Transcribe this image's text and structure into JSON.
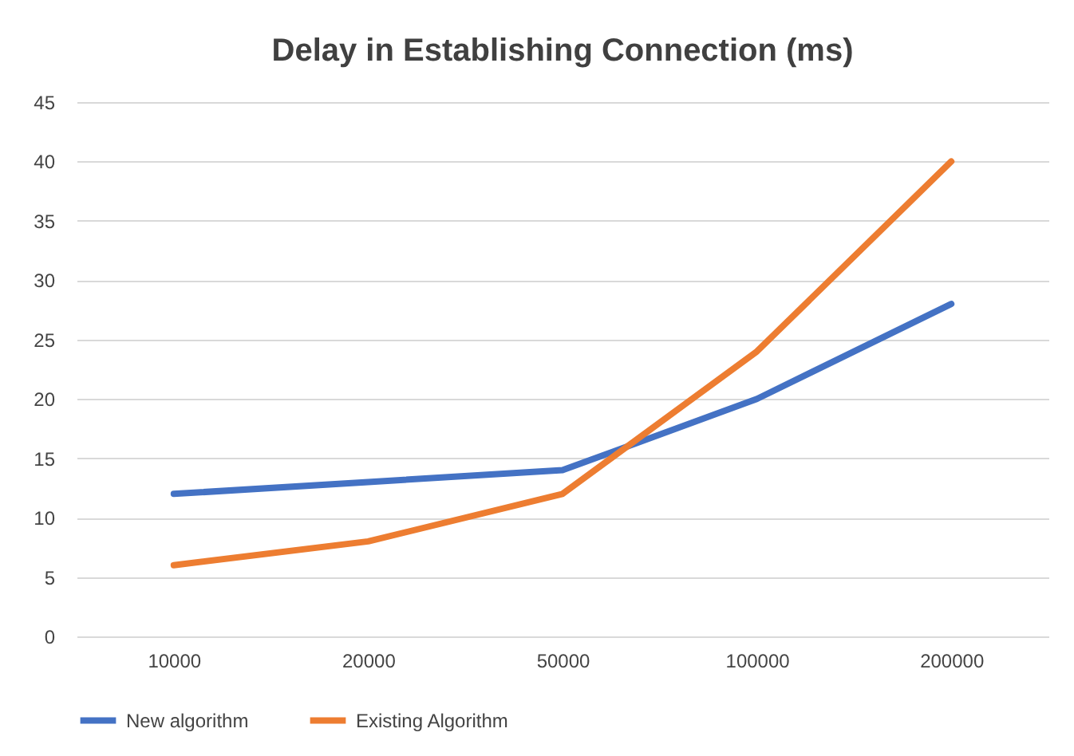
{
  "chart_data": {
    "type": "line",
    "title": "Delay in Establishing Connection (ms)",
    "categories": [
      "10000",
      "20000",
      "50000",
      "100000",
      "200000"
    ],
    "series": [
      {
        "name": "New algorithm",
        "color": "#4472c4",
        "values": [
          12,
          13,
          14,
          20,
          28
        ]
      },
      {
        "name": "Existing Algorithm",
        "color": "#ed7d31",
        "values": [
          6,
          8,
          12,
          24,
          40
        ]
      }
    ],
    "ylim": [
      0,
      45
    ],
    "yticks": [
      0,
      5,
      10,
      15,
      20,
      25,
      30,
      35,
      40,
      45
    ],
    "grid": "y",
    "legend": "bottom",
    "marker": "none",
    "line_style": "solid"
  }
}
